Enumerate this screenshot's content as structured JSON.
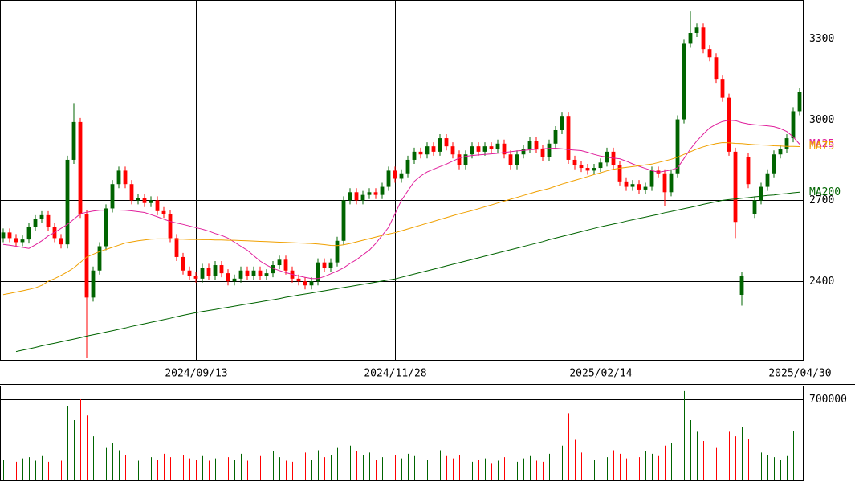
{
  "chart_data": [
    {
      "type": "candlestick",
      "up_color": "#006400",
      "down_color": "#ff0000",
      "xlim": [
        -0.5,
        124.5
      ],
      "xticks": [
        {
          "value": 30,
          "label": "2024/09/13"
        },
        {
          "value": 61,
          "label": "2024/11/28"
        },
        {
          "value": 93,
          "label": "2025/02/14"
        },
        {
          "value": 124,
          "label": "2025/04/30"
        }
      ],
      "ylim": [
        2109,
        3442
      ],
      "yticks": [
        2400,
        2700,
        3000,
        3300
      ],
      "grid": true,
      "open": [
        2560,
        2581,
        2560,
        2545,
        2555,
        2600,
        2630,
        2645,
        2600,
        2560,
        2537,
        2850,
        2990,
        2650,
        2340,
        2440,
        2530,
        2670,
        2760,
        2810,
        2760,
        2700,
        2710,
        2690,
        2700,
        2660,
        2650,
        2560,
        2490,
        2440,
        2420,
        2410,
        2450,
        2420,
        2460,
        2430,
        2400,
        2410,
        2440,
        2420,
        2440,
        2420,
        2430,
        2460,
        2480,
        2440,
        2410,
        2400,
        2385,
        2400,
        2470,
        2450,
        2470,
        2550,
        2700,
        2730,
        2700,
        2720,
        2730,
        2720,
        2750,
        2810,
        2780,
        2800,
        2850,
        2880,
        2870,
        2900,
        2880,
        2930,
        2900,
        2870,
        2830,
        2870,
        2900,
        2880,
        2900,
        2890,
        2910,
        2870,
        2830,
        2870,
        2890,
        2920,
        2890,
        2860,
        2910,
        2960,
        3010,
        2850,
        2830,
        2820,
        2810,
        2820,
        2840,
        2880,
        2830,
        2770,
        2750,
        2760,
        2740,
        2750,
        2810,
        2800,
        2730,
        2800,
        3000,
        3280,
        3320,
        3340,
        3260,
        3230,
        3150,
        3080,
        2880,
        2350,
        2860,
        2650,
        2700,
        2750,
        2800,
        2870,
        2890,
        2930,
        3030
      ],
      "high": [
        2596,
        2596,
        2575,
        2570,
        2615,
        2645,
        2660,
        2660,
        2615,
        2575,
        2865,
        3060,
        3005,
        2665,
        2455,
        2545,
        2685,
        2775,
        2825,
        2825,
        2775,
        2725,
        2725,
        2715,
        2715,
        2675,
        2665,
        2575,
        2505,
        2455,
        2435,
        2465,
        2465,
        2475,
        2475,
        2445,
        2425,
        2455,
        2455,
        2455,
        2455,
        2445,
        2475,
        2495,
        2495,
        2455,
        2425,
        2415,
        2415,
        2485,
        2485,
        2485,
        2565,
        2715,
        2745,
        2745,
        2735,
        2745,
        2745,
        2765,
        2825,
        2825,
        2815,
        2865,
        2895,
        2895,
        2915,
        2915,
        2945,
        2945,
        2915,
        2885,
        2885,
        2915,
        2915,
        2915,
        2915,
        2925,
        2925,
        2885,
        2885,
        2905,
        2935,
        2935,
        2905,
        2925,
        2975,
        3025,
        3025,
        2865,
        2845,
        2835,
        2835,
        2855,
        2895,
        2895,
        2845,
        2785,
        2775,
        2775,
        2765,
        2825,
        2825,
        2815,
        2815,
        3015,
        3295,
        3400,
        3355,
        3355,
        3275,
        3245,
        3165,
        3095,
        2895,
        2435,
        2875,
        2715,
        2765,
        2815,
        2885,
        2905,
        2945,
        3045,
        3115
      ],
      "low": [
        2545,
        2545,
        2530,
        2530,
        2540,
        2585,
        2615,
        2585,
        2545,
        2522,
        2522,
        2835,
        2635,
        2115,
        2325,
        2425,
        2515,
        2655,
        2745,
        2745,
        2685,
        2685,
        2675,
        2675,
        2645,
        2635,
        2545,
        2475,
        2425,
        2405,
        2395,
        2395,
        2405,
        2405,
        2415,
        2385,
        2385,
        2395,
        2405,
        2405,
        2405,
        2405,
        2415,
        2445,
        2425,
        2395,
        2385,
        2370,
        2370,
        2385,
        2435,
        2435,
        2455,
        2535,
        2685,
        2685,
        2685,
        2705,
        2705,
        2705,
        2735,
        2765,
        2765,
        2785,
        2835,
        2855,
        2855,
        2865,
        2865,
        2885,
        2855,
        2815,
        2815,
        2855,
        2865,
        2865,
        2875,
        2875,
        2855,
        2815,
        2815,
        2855,
        2875,
        2875,
        2845,
        2845,
        2895,
        2945,
        2835,
        2815,
        2805,
        2795,
        2795,
        2805,
        2825,
        2815,
        2755,
        2735,
        2735,
        2725,
        2725,
        2735,
        2785,
        2680,
        2715,
        2785,
        2985,
        3265,
        3305,
        3245,
        3215,
        3135,
        3065,
        2865,
        2560,
        2310,
        2745,
        2635,
        2685,
        2735,
        2785,
        2855,
        2875,
        2915,
        3015
      ],
      "close": [
        2581,
        2560,
        2545,
        2555,
        2600,
        2630,
        2645,
        2600,
        2560,
        2537,
        2850,
        2990,
        2650,
        2340,
        2440,
        2530,
        2670,
        2760,
        2810,
        2760,
        2700,
        2710,
        2690,
        2700,
        2660,
        2650,
        2560,
        2490,
        2440,
        2420,
        2410,
        2450,
        2420,
        2460,
        2430,
        2400,
        2410,
        2440,
        2420,
        2440,
        2420,
        2430,
        2460,
        2480,
        2440,
        2410,
        2400,
        2385,
        2400,
        2470,
        2450,
        2470,
        2550,
        2700,
        2730,
        2700,
        2720,
        2730,
        2720,
        2750,
        2810,
        2780,
        2800,
        2850,
        2880,
        2870,
        2900,
        2880,
        2930,
        2900,
        2870,
        2830,
        2870,
        2900,
        2880,
        2900,
        2890,
        2910,
        2870,
        2830,
        2870,
        2890,
        2920,
        2890,
        2860,
        2910,
        2960,
        3010,
        2850,
        2830,
        2820,
        2810,
        2820,
        2840,
        2880,
        2830,
        2770,
        2750,
        2760,
        2740,
        2750,
        2810,
        2800,
        2730,
        2800,
        3000,
        3280,
        3320,
        3340,
        3260,
        3230,
        3150,
        3080,
        2880,
        2620,
        2420,
        2760,
        2700,
        2750,
        2800,
        2870,
        2890,
        2930,
        3030,
        3100
      ],
      "series": [
        {
          "name": "MA25",
          "color": "#e01e9b",
          "values": [
            2537,
            2534,
            2530,
            2526,
            2522,
            2535,
            2550,
            2568,
            2581,
            2596,
            2611,
            2630,
            2650,
            2656,
            2660,
            2663,
            2664,
            2664,
            2664,
            2663,
            2661,
            2658,
            2655,
            2647,
            2639,
            2630,
            2622,
            2616,
            2611,
            2605,
            2599,
            2593,
            2586,
            2577,
            2570,
            2560,
            2545,
            2530,
            2515,
            2495,
            2475,
            2460,
            2448,
            2440,
            2432,
            2426,
            2420,
            2415,
            2410,
            2410,
            2418,
            2428,
            2438,
            2450,
            2466,
            2480,
            2498,
            2515,
            2540,
            2570,
            2600,
            2650,
            2700,
            2735,
            2770,
            2790,
            2805,
            2815,
            2825,
            2834,
            2845,
            2856,
            2863,
            2866,
            2868,
            2870,
            2872,
            2874,
            2877,
            2880,
            2883,
            2885,
            2887,
            2889,
            2891,
            2892,
            2893,
            2891,
            2888,
            2886,
            2884,
            2878,
            2870,
            2864,
            2860,
            2856,
            2854,
            2845,
            2835,
            2826,
            2818,
            2810,
            2804,
            2808,
            2812,
            2820,
            2855,
            2890,
            2920,
            2945,
            2968,
            2982,
            2992,
            2997,
            2995,
            2988,
            2983,
            2980,
            2978,
            2976,
            2973,
            2966,
            2955,
            2935,
            2908
          ]
        },
        {
          "name": "MA75",
          "color": "#f0a000",
          "values": [
            2351,
            2355,
            2360,
            2365,
            2370,
            2376,
            2385,
            2400,
            2410,
            2422,
            2435,
            2450,
            2470,
            2490,
            2500,
            2510,
            2518,
            2526,
            2534,
            2542,
            2546,
            2550,
            2553,
            2556,
            2557,
            2557,
            2557,
            2556,
            2556,
            2555,
            2555,
            2554,
            2554,
            2553,
            2553,
            2552,
            2552,
            2551,
            2550,
            2549,
            2548,
            2547,
            2546,
            2545,
            2544,
            2543,
            2542,
            2541,
            2540,
            2538,
            2536,
            2533,
            2532,
            2535,
            2540,
            2546,
            2552,
            2558,
            2564,
            2570,
            2575,
            2580,
            2587,
            2594,
            2601,
            2608,
            2615,
            2622,
            2629,
            2636,
            2643,
            2650,
            2656,
            2662,
            2669,
            2676,
            2683,
            2690,
            2697,
            2704,
            2711,
            2718,
            2725,
            2732,
            2738,
            2744,
            2752,
            2760,
            2767,
            2774,
            2781,
            2788,
            2795,
            2802,
            2809,
            2815,
            2819,
            2822,
            2825,
            2828,
            2831,
            2834,
            2840,
            2846,
            2852,
            2860,
            2870,
            2880,
            2890,
            2898,
            2905,
            2910,
            2914,
            2913,
            2911,
            2910,
            2908,
            2906,
            2905,
            2904,
            2902,
            2901,
            2900,
            2900,
            2899
          ]
        },
        {
          "name": "MA200",
          "color": "#006400",
          "values": [
            null,
            null,
            2140,
            2145,
            2150,
            2155,
            2161,
            2166,
            2171,
            2176,
            2181,
            2186,
            2191,
            2197,
            2202,
            2207,
            2212,
            2217,
            2222,
            2227,
            2233,
            2238,
            2243,
            2248,
            2253,
            2258,
            2263,
            2269,
            2274,
            2279,
            2284,
            2288,
            2292,
            2296,
            2300,
            2304,
            2308,
            2312,
            2316,
            2320,
            2324,
            2328,
            2332,
            2336,
            2341,
            2345,
            2349,
            2353,
            2357,
            2361,
            2365,
            2369,
            2373,
            2377,
            2381,
            2385,
            2389,
            2393,
            2397,
            2401,
            2405,
            2409,
            2415,
            2421,
            2427,
            2433,
            2439,
            2445,
            2451,
            2457,
            2463,
            2469,
            2475,
            2481,
            2487,
            2493,
            2499,
            2505,
            2511,
            2517,
            2523,
            2529,
            2535,
            2541,
            2547,
            2554,
            2560,
            2566,
            2572,
            2578,
            2584,
            2590,
            2596,
            2602,
            2607,
            2612,
            2617,
            2623,
            2628,
            2633,
            2638,
            2643,
            2648,
            2654,
            2659,
            2664,
            2669,
            2674,
            2679,
            2685,
            2690,
            2695,
            2700,
            2703,
            2705,
            2708,
            2710,
            2713,
            2715,
            2718,
            2720,
            2723,
            2725,
            2728,
            2730
          ]
        }
      ]
    },
    {
      "type": "bar",
      "ylim": [
        0,
        818000
      ],
      "yticks": [
        700000
      ],
      "grid": true,
      "values": [
        180000,
        150000,
        160000,
        190000,
        200000,
        170000,
        210000,
        160000,
        140000,
        170000,
        640000,
        520000,
        700000,
        560000,
        380000,
        300000,
        280000,
        320000,
        260000,
        220000,
        190000,
        170000,
        160000,
        200000,
        180000,
        230000,
        200000,
        250000,
        220000,
        190000,
        180000,
        210000,
        170000,
        190000,
        160000,
        200000,
        180000,
        230000,
        170000,
        160000,
        210000,
        190000,
        250000,
        200000,
        170000,
        160000,
        220000,
        240000,
        180000,
        260000,
        200000,
        220000,
        280000,
        420000,
        300000,
        250000,
        220000,
        240000,
        180000,
        200000,
        280000,
        220000,
        190000,
        230000,
        210000,
        240000,
        180000,
        200000,
        260000,
        210000,
        190000,
        220000,
        170000,
        160000,
        180000,
        190000,
        150000,
        170000,
        200000,
        180000,
        160000,
        190000,
        210000,
        170000,
        160000,
        230000,
        260000,
        300000,
        580000,
        350000,
        240000,
        200000,
        180000,
        220000,
        200000,
        260000,
        230000,
        190000,
        170000,
        200000,
        250000,
        230000,
        210000,
        300000,
        320000,
        650000,
        770000,
        520000,
        420000,
        340000,
        300000,
        280000,
        250000,
        420000,
        380000,
        460000,
        360000,
        300000,
        240000,
        220000,
        200000,
        180000,
        210000,
        430000,
        200000
      ]
    }
  ]
}
